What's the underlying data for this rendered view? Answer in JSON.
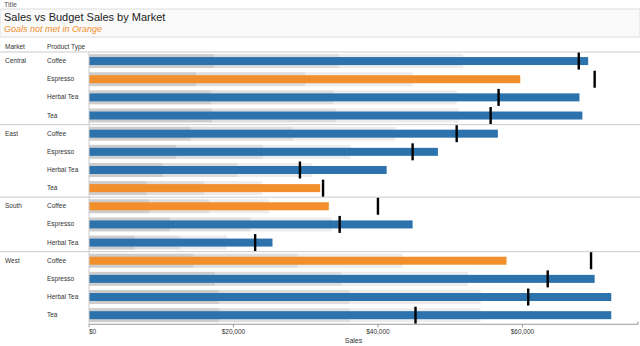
{
  "chart_data": {
    "type": "bar",
    "orientation": "horizontal",
    "header": "Title",
    "title": "Sales vs Budget Sales by Market",
    "subtitle": "Goals not met in Orange",
    "column_headers": [
      "Market",
      "Product Type"
    ],
    "x_label": "Sales",
    "markets": [
      "Central",
      "Central",
      "Central",
      "Central",
      "East",
      "East",
      "East",
      "East",
      "South",
      "South",
      "South",
      "West",
      "West",
      "West",
      "West"
    ],
    "categories": [
      "Coffee",
      "Espresso",
      "Herbal Tea",
      "Tea",
      "Coffee",
      "Espresso",
      "Herbal Tea",
      "Tea",
      "Coffee",
      "Espresso",
      "Herbal Tea",
      "Coffee",
      "Espresso",
      "Herbal Tea",
      "Tea"
    ],
    "series": [
      {
        "name": "Sales",
        "type": "bar",
        "values": [
          69100,
          59700,
          67900,
          68300,
          56600,
          48300,
          41200,
          32000,
          33200,
          44800,
          25400,
          57800,
          70000,
          72300,
          72300
        ],
        "colors": [
          "#2c72ad",
          "#f28e2b",
          "#2c72ad",
          "#2c72ad",
          "#2c72ad",
          "#2c72ad",
          "#2c72ad",
          "#f28e2b",
          "#f28e2b",
          "#2c72ad",
          "#2c72ad",
          "#f28e2b",
          "#2c72ad",
          "#2c72ad",
          "#2c72ad"
        ]
      },
      {
        "name": "Budget Sales",
        "type": "reference_line",
        "color": "#000000",
        "values": [
          67800,
          70000,
          56700,
          55600,
          50900,
          44800,
          29200,
          32400,
          40000,
          34700,
          23000,
          69500,
          63500,
          60800,
          45200
        ]
      }
    ],
    "bands": [
      [
        17300,
        34600,
        51800
      ],
      [
        14900,
        29900,
        44800
      ],
      [
        17000,
        33900,
        50900
      ],
      [
        17100,
        34200,
        51200
      ],
      [
        14100,
        28300,
        42400
      ],
      [
        12100,
        24100,
        36200
      ],
      [
        10300,
        20600,
        30900
      ],
      [
        8000,
        16000,
        24000
      ],
      [
        8300,
        16600,
        24900
      ],
      [
        11200,
        22400,
        33600
      ],
      [
        6400,
        12700,
        19100
      ],
      [
        14500,
        28900,
        43400
      ],
      [
        17500,
        35000,
        52500
      ],
      [
        18100,
        36200,
        54200
      ],
      [
        18100,
        36200,
        54200
      ]
    ],
    "xlim": [
      0,
      76000
    ],
    "xticks": [
      {
        "value": 0,
        "label": "$0"
      },
      {
        "value": 20000,
        "label": "$20,000"
      },
      {
        "value": 40000,
        "label": "$40,000"
      },
      {
        "value": 60000,
        "label": "$60,000"
      }
    ],
    "grid": false
  }
}
